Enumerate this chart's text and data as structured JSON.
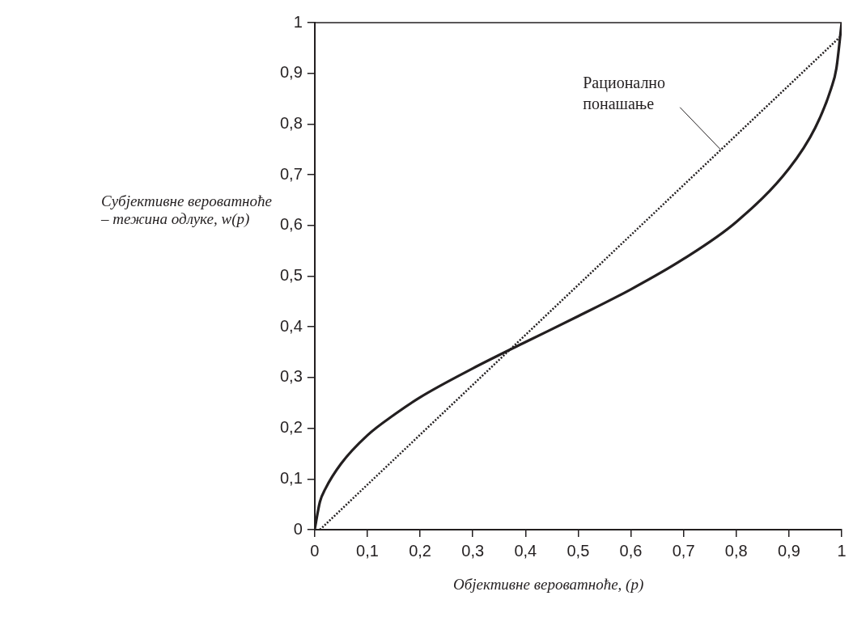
{
  "chart_data": {
    "type": "line",
    "xlabel": "Објективне вероватноће, (p)",
    "ylabel": "Субјективне вероватноће – тежина одлуке, w(p)",
    "xlim": [
      0,
      1
    ],
    "ylim": [
      0,
      1
    ],
    "xticks": [
      0,
      "0,1",
      "0,2",
      "0,3",
      "0,4",
      "0,5",
      "0,6",
      "0,7",
      "0,8",
      "0,9",
      1
    ],
    "yticks": [
      0,
      "0,1",
      "0,2",
      "0,3",
      "0,4",
      "0,5",
      "0,6",
      "0,7",
      "0,8",
      "0,9",
      1
    ],
    "grid": false,
    "legend": false,
    "marker": "none",
    "line_style": "solid",
    "series": [
      {
        "color": "#231f20",
        "x": [
          0,
          0.01,
          0.02,
          0.05,
          0.1,
          0.15,
          0.2,
          0.3,
          0.4,
          0.5,
          0.6,
          0.7,
          0.8,
          0.9,
          0.95,
          0.98,
          0.99,
          1
        ],
        "values": [
          0,
          0.055,
          0.08,
          0.13,
          0.186,
          0.226,
          0.261,
          0.318,
          0.37,
          0.421,
          0.474,
          0.534,
          0.607,
          0.712,
          0.793,
          0.87,
          0.91,
          1
        ]
      },
      {
        "color": "#231f20",
        "line_style": "dotted",
        "x": [
          0.01,
          1
        ],
        "values": [
          0,
          0.975
        ]
      }
    ],
    "annotations": [
      {
        "text": "Рационално понашање",
        "x": 0.77,
        "y": 0.75
      }
    ]
  }
}
